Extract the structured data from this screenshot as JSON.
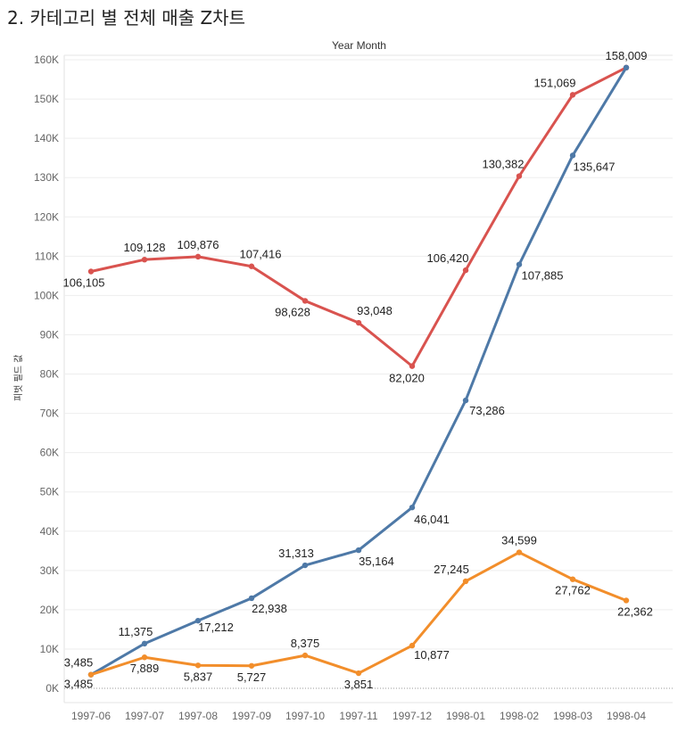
{
  "chart_data": {
    "type": "line",
    "title": "2. 카테고리 별 전체 매출 Z차트",
    "column_header": "Year Month",
    "ylabel": "피벗 필드 값",
    "xlabel": "",
    "ylim": [
      0,
      165000
    ],
    "yticks": [
      0,
      10000,
      20000,
      30000,
      40000,
      50000,
      60000,
      70000,
      80000,
      90000,
      100000,
      110000,
      120000,
      130000,
      140000,
      150000,
      160000
    ],
    "ytick_labels": [
      "0K",
      "10K",
      "20K",
      "30K",
      "40K",
      "50K",
      "60K",
      "70K",
      "80K",
      "90K",
      "100K",
      "110K",
      "120K",
      "130K",
      "140K",
      "150K",
      "160K"
    ],
    "grid": true,
    "categories": [
      "1997-06",
      "1997-07",
      "1997-08",
      "1997-09",
      "1997-10",
      "1997-11",
      "1997-12",
      "1998-01",
      "1998-02",
      "1998-03",
      "1998-04"
    ],
    "series": [
      {
        "name": "red",
        "color": "#d9534f",
        "values": [
          106105,
          109128,
          109876,
          107416,
          98628,
          93048,
          82020,
          106420,
          130382,
          151069,
          158009
        ],
        "labels": [
          "106,105",
          "109,128",
          "109,876",
          "107,416",
          "98,628",
          "93,048",
          "82,020",
          "106,420",
          "130,382",
          "151,069",
          ""
        ]
      },
      {
        "name": "blue",
        "color": "#4e79a7",
        "values": [
          3485,
          11375,
          17212,
          22938,
          31313,
          35164,
          46041,
          73286,
          107885,
          135647,
          158009
        ],
        "labels": [
          "3,485",
          "11,375",
          "17,212",
          "22,938",
          "31,313",
          "35,164",
          "46,041",
          "73,286",
          "107,885",
          "135,647",
          "158,009"
        ]
      },
      {
        "name": "orange",
        "color": "#f28e2b",
        "values": [
          3485,
          7889,
          5837,
          5727,
          8375,
          3851,
          10877,
          27245,
          34599,
          27762,
          22362
        ],
        "labels": [
          "3,485",
          "7,889",
          "5,837",
          "5,727",
          "8,375",
          "3,851",
          "10,877",
          "27,245",
          "34,599",
          "27,762",
          "22,362"
        ]
      }
    ]
  }
}
